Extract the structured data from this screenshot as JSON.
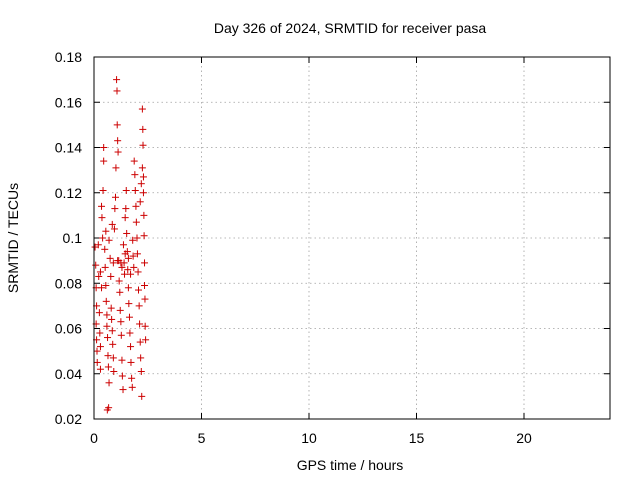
{
  "chart_data": {
    "type": "scatter",
    "title": "Day 326 of 2024, SRMTID for receiver pasa",
    "xlabel": "GPS time / hours",
    "ylabel": "SRMTID / TECUs",
    "xlim": [
      0,
      24
    ],
    "ylim": [
      0.02,
      0.18
    ],
    "xticks": [
      0,
      5,
      10,
      15,
      20
    ],
    "yticks": [
      0.02,
      0.04,
      0.06,
      0.08,
      0.1,
      0.12,
      0.14,
      0.16,
      0.18
    ],
    "xtick_labels": [
      "0",
      "5",
      "10",
      "15",
      "20"
    ],
    "ytick_labels": [
      "0.02",
      "0.04",
      "0.06",
      "0.08",
      "0.1",
      "0.12",
      "0.14",
      "0.16",
      "0.18"
    ],
    "grid": true,
    "marker": "+",
    "color": "#cc0000",
    "series": [
      {
        "name": "pasa",
        "points": [
          [
            0.05,
            0.096
          ],
          [
            0.08,
            0.088
          ],
          [
            0.1,
            0.078
          ],
          [
            0.12,
            0.07
          ],
          [
            0.1,
            0.062
          ],
          [
            0.12,
            0.055
          ],
          [
            0.14,
            0.05
          ],
          [
            0.15,
            0.045
          ],
          [
            0.2,
            0.097
          ],
          [
            0.22,
            0.083
          ],
          [
            0.25,
            0.067
          ],
          [
            0.27,
            0.058
          ],
          [
            0.3,
            0.052
          ],
          [
            0.3,
            0.042
          ],
          [
            0.35,
            0.114
          ],
          [
            0.37,
            0.109
          ],
          [
            0.4,
            0.1
          ],
          [
            0.42,
            0.121
          ],
          [
            0.45,
            0.14
          ],
          [
            0.45,
            0.134
          ],
          [
            0.5,
            0.095
          ],
          [
            0.52,
            0.087
          ],
          [
            0.55,
            0.079
          ],
          [
            0.57,
            0.072
          ],
          [
            0.6,
            0.066
          ],
          [
            0.6,
            0.061
          ],
          [
            0.63,
            0.056
          ],
          [
            0.65,
            0.048
          ],
          [
            0.67,
            0.043
          ],
          [
            0.7,
            0.036
          ],
          [
            0.62,
            0.024
          ],
          [
            0.68,
            0.025
          ],
          [
            0.75,
            0.091
          ],
          [
            0.78,
            0.083
          ],
          [
            0.8,
            0.069
          ],
          [
            0.82,
            0.064
          ],
          [
            0.85,
            0.059
          ],
          [
            0.87,
            0.053
          ],
          [
            0.9,
            0.047
          ],
          [
            0.92,
            0.041
          ],
          [
            0.95,
            0.104
          ],
          [
            0.97,
            0.113
          ],
          [
            1.0,
            0.118
          ],
          [
            1.02,
            0.131
          ],
          [
            1.05,
            0.17
          ],
          [
            1.07,
            0.165
          ],
          [
            1.08,
            0.15
          ],
          [
            1.1,
            0.143
          ],
          [
            1.12,
            0.138
          ],
          [
            1.15,
            0.09
          ],
          [
            1.17,
            0.081
          ],
          [
            1.2,
            0.076
          ],
          [
            1.22,
            0.068
          ],
          [
            1.25,
            0.063
          ],
          [
            1.27,
            0.057
          ],
          [
            1.3,
            0.046
          ],
          [
            1.32,
            0.039
          ],
          [
            1.35,
            0.033
          ],
          [
            1.37,
            0.097
          ],
          [
            1.4,
            0.089
          ],
          [
            1.42,
            0.084
          ],
          [
            1.45,
            0.109
          ],
          [
            1.48,
            0.113
          ],
          [
            1.5,
            0.121
          ],
          [
            1.52,
            0.102
          ],
          [
            1.55,
            0.094
          ],
          [
            1.57,
            0.086
          ],
          [
            1.6,
            0.078
          ],
          [
            1.62,
            0.071
          ],
          [
            1.65,
            0.065
          ],
          [
            1.67,
            0.058
          ],
          [
            1.7,
            0.052
          ],
          [
            1.72,
            0.045
          ],
          [
            1.75,
            0.038
          ],
          [
            1.78,
            0.034
          ],
          [
            1.8,
            0.099
          ],
          [
            1.82,
            0.092
          ],
          [
            1.85,
            0.087
          ],
          [
            1.87,
            0.134
          ],
          [
            1.9,
            0.128
          ],
          [
            1.92,
            0.121
          ],
          [
            1.95,
            0.114
          ],
          [
            1.97,
            0.107
          ],
          [
            2.0,
            0.1
          ],
          [
            2.02,
            0.093
          ],
          [
            2.05,
            0.085
          ],
          [
            2.07,
            0.077
          ],
          [
            2.1,
            0.07
          ],
          [
            2.12,
            0.062
          ],
          [
            2.15,
            0.054
          ],
          [
            2.17,
            0.047
          ],
          [
            2.2,
            0.041
          ],
          [
            2.22,
            0.03
          ],
          [
            2.25,
            0.157
          ],
          [
            2.27,
            0.148
          ],
          [
            2.28,
            0.141
          ],
          [
            2.3,
            0.127
          ],
          [
            2.3,
            0.12
          ],
          [
            2.32,
            0.11
          ],
          [
            2.33,
            0.101
          ],
          [
            2.35,
            0.089
          ],
          [
            2.35,
            0.079
          ],
          [
            2.37,
            0.073
          ],
          [
            2.38,
            0.061
          ],
          [
            2.4,
            0.055
          ],
          [
            2.25,
            0.131
          ],
          [
            2.2,
            0.124
          ],
          [
            2.15,
            0.116
          ],
          [
            1.6,
            0.091
          ],
          [
            1.3,
            0.087
          ],
          [
            0.9,
            0.089
          ],
          [
            1.1,
            0.09
          ],
          [
            1.25,
            0.089
          ],
          [
            0.55,
            0.103
          ],
          [
            0.7,
            0.099
          ],
          [
            0.85,
            0.106
          ],
          [
            1.45,
            0.093
          ],
          [
            1.7,
            0.084
          ],
          [
            0.3,
            0.085
          ],
          [
            0.35,
            0.078
          ]
        ]
      }
    ]
  }
}
